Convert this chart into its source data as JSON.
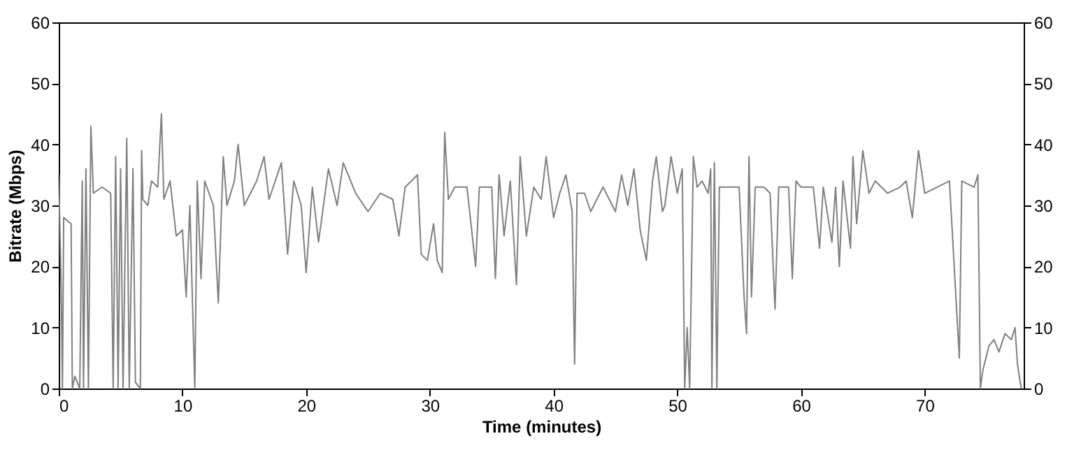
{
  "chart_data": {
    "type": "line",
    "xlabel": "Time (minutes)",
    "ylabel": "Bitrate (Mbps)",
    "xlim": [
      0,
      78
    ],
    "xticks": [
      0,
      10,
      20,
      30,
      40,
      50,
      60,
      70
    ],
    "ylim": [
      0,
      60
    ],
    "yticks": [
      0,
      10,
      20,
      30,
      40,
      50,
      60
    ],
    "y2lim": [
      0,
      60
    ],
    "y2ticks": [
      0,
      10,
      20,
      30,
      40,
      50,
      60
    ],
    "grid": false,
    "marker": "none",
    "line_style": "solid",
    "series": [
      {
        "color": "#808080",
        "x": [
          0,
          0.2,
          0.3,
          0.4,
          1.0,
          1.1,
          1.3,
          1.7,
          1.9,
          2.0,
          2.2,
          2.4,
          2.6,
          2.8,
          3.5,
          4.2,
          4.4,
          4.6,
          4.8,
          5.0,
          5.2,
          5.5,
          5.7,
          6.0,
          6.2,
          6.6,
          6.7,
          6.8,
          7.2,
          7.5,
          8.0,
          8.3,
          8.5,
          9.0,
          9.5,
          10.0,
          10.3,
          10.6,
          11.0,
          11.2,
          11.5,
          11.8,
          12.5,
          12.9,
          13.3,
          13.6,
          14.2,
          14.5,
          15,
          16,
          16.6,
          17,
          18,
          18.5,
          19,
          19.6,
          20,
          20.5,
          21,
          21.8,
          22.5,
          23,
          24,
          25,
          26,
          27,
          27.5,
          28,
          29,
          29.3,
          29.8,
          30.3,
          30.6,
          31,
          31.2,
          31.5,
          32,
          33,
          33.7,
          34,
          35,
          35.3,
          35.6,
          36,
          36.5,
          37,
          37.3,
          37.8,
          38.4,
          39,
          39.4,
          40,
          40.5,
          41,
          41.5,
          41.7,
          41.9,
          42.5,
          43,
          44,
          45,
          45.5,
          46,
          46.5,
          47,
          47.5,
          48,
          48.3,
          48.8,
          49,
          49.5,
          50,
          50.4,
          50.6,
          50.8,
          51,
          51.3,
          51.6,
          52,
          52.5,
          52.7,
          52.8,
          53,
          53.2,
          53.4,
          54,
          55,
          55.4,
          55.6,
          55.8,
          56,
          56.3,
          57,
          57.5,
          57.9,
          58.2,
          59,
          59.3,
          59.6,
          60,
          61,
          61.5,
          61.8,
          62.5,
          62.8,
          63.1,
          63.4,
          64,
          64.2,
          64.5,
          65,
          65.5,
          66,
          67,
          68,
          68.5,
          69,
          69.5,
          70,
          71,
          72,
          72.8,
          73,
          74,
          74.3,
          74.5,
          74.7,
          75.2,
          75.6,
          76,
          76.5,
          77,
          77.3,
          77.5,
          77.8
        ],
        "values": [
          35,
          16,
          0,
          28,
          27,
          0,
          2,
          0,
          34,
          0,
          36,
          0,
          43,
          32,
          33,
          32,
          0,
          38,
          0,
          36,
          0,
          41,
          0,
          36,
          1,
          0,
          39,
          31,
          30,
          34,
          33,
          45,
          31,
          34,
          25,
          26,
          15,
          30,
          0,
          34,
          18,
          34,
          30,
          14,
          38,
          30,
          34,
          40,
          30,
          34,
          38,
          31,
          37,
          22,
          34,
          30,
          19,
          33,
          24,
          36,
          30,
          37,
          32,
          29,
          32,
          31,
          25,
          33,
          35,
          22,
          21,
          27,
          21,
          19,
          42,
          31,
          33,
          33,
          20,
          33,
          33,
          18,
          35,
          25,
          34,
          17,
          38,
          25,
          33,
          31,
          38,
          28,
          32,
          35,
          29,
          4,
          32,
          32,
          29,
          33,
          29,
          35,
          30,
          36,
          26,
          21,
          34,
          38,
          29,
          30,
          38,
          32,
          36,
          0,
          10,
          0,
          38,
          33,
          34,
          32,
          36,
          0,
          37,
          0,
          33,
          33,
          33,
          15,
          9,
          38,
          15,
          33,
          33,
          32,
          13,
          33,
          33,
          18,
          34,
          33,
          33,
          23,
          33,
          24,
          33,
          20,
          34,
          23,
          38,
          27,
          39,
          32,
          34,
          32,
          33,
          34,
          28,
          39,
          32,
          33,
          34,
          5,
          34,
          33,
          35,
          0,
          3,
          7,
          8,
          6,
          9,
          8,
          10,
          4,
          0
        ]
      }
    ]
  }
}
